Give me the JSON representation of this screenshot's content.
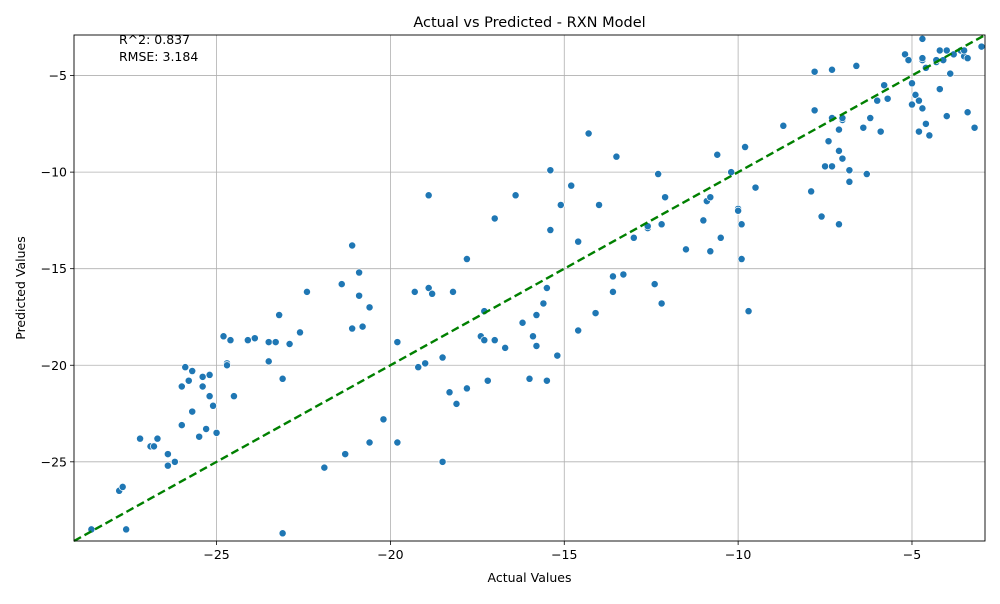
{
  "chart_data": {
    "type": "scatter",
    "title": "Actual vs Predicted - RXN Model",
    "xlabel": "Actual Values",
    "ylabel": "Predicted Values",
    "xlim": [
      -29.1,
      -2.9
    ],
    "ylim": [
      -29.1,
      -2.9
    ],
    "xticks": [
      -25,
      -20,
      -15,
      -10,
      -5
    ],
    "yticks": [
      -25,
      -20,
      -15,
      -10,
      -5
    ],
    "xtick_labels": [
      "−25",
      "−20",
      "−15",
      "−10",
      "−5"
    ],
    "ytick_labels": [
      "−25",
      "−20",
      "−15",
      "−10",
      "−5"
    ],
    "grid": true,
    "annotations": [
      "R^2: 0.837",
      "RMSE: 3.184"
    ],
    "reference_line": {
      "style": "dashed",
      "color": "#008000",
      "from": [
        -29.1,
        -29.1
      ],
      "to": [
        -2.9,
        -2.9
      ]
    },
    "point_color": "#1f77b4",
    "points": [
      [
        -28.6,
        -28.5
      ],
      [
        -27.8,
        -26.5
      ],
      [
        -27.7,
        -26.3
      ],
      [
        -27.6,
        -28.5
      ],
      [
        -27.2,
        -23.8
      ],
      [
        -26.9,
        -24.2
      ],
      [
        -26.8,
        -24.2
      ],
      [
        -26.7,
        -23.8
      ],
      [
        -26.4,
        -24.6
      ],
      [
        -26.4,
        -25.2
      ],
      [
        -26.2,
        -25.0
      ],
      [
        -26.0,
        -23.1
      ],
      [
        -26.0,
        -21.1
      ],
      [
        -25.9,
        -20.1
      ],
      [
        -25.8,
        -20.8
      ],
      [
        -25.7,
        -20.3
      ],
      [
        -25.7,
        -22.4
      ],
      [
        -25.5,
        -23.7
      ],
      [
        -25.4,
        -21.1
      ],
      [
        -25.4,
        -20.6
      ],
      [
        -25.3,
        -23.3
      ],
      [
        -25.2,
        -20.5
      ],
      [
        -25.2,
        -21.6
      ],
      [
        -25.1,
        -22.1
      ],
      [
        -25.0,
        -23.5
      ],
      [
        -24.8,
        -18.5
      ],
      [
        -24.7,
        -19.9
      ],
      [
        -24.7,
        -20.0
      ],
      [
        -24.6,
        -18.7
      ],
      [
        -24.5,
        -21.6
      ],
      [
        -24.1,
        -18.7
      ],
      [
        -23.9,
        -18.6
      ],
      [
        -23.5,
        -18.8
      ],
      [
        -23.5,
        -19.8
      ],
      [
        -23.3,
        -18.8
      ],
      [
        -23.2,
        -17.4
      ],
      [
        -23.1,
        -20.7
      ],
      [
        -23.1,
        -28.7
      ],
      [
        -22.9,
        -18.9
      ],
      [
        -22.6,
        -18.3
      ],
      [
        -22.4,
        -16.2
      ],
      [
        -21.9,
        -25.3
      ],
      [
        -21.4,
        -15.8
      ],
      [
        -21.3,
        -24.6
      ],
      [
        -21.1,
        -18.1
      ],
      [
        -21.1,
        -13.8
      ],
      [
        -20.9,
        -16.4
      ],
      [
        -20.9,
        -15.2
      ],
      [
        -20.8,
        -18.0
      ],
      [
        -20.6,
        -24.0
      ],
      [
        -20.6,
        -17.0
      ],
      [
        -20.2,
        -22.8
      ],
      [
        -19.8,
        -24.0
      ],
      [
        -19.8,
        -18.8
      ],
      [
        -19.3,
        -16.2
      ],
      [
        -19.2,
        -20.1
      ],
      [
        -19.0,
        -19.9
      ],
      [
        -18.9,
        -16.0
      ],
      [
        -18.9,
        -11.2
      ],
      [
        -18.8,
        -16.3
      ],
      [
        -18.5,
        -19.6
      ],
      [
        -18.5,
        -25.0
      ],
      [
        -18.3,
        -21.4
      ],
      [
        -18.2,
        -16.2
      ],
      [
        -18.1,
        -22.0
      ],
      [
        -17.8,
        -14.5
      ],
      [
        -17.8,
        -21.2
      ],
      [
        -17.4,
        -18.5
      ],
      [
        -17.3,
        -17.2
      ],
      [
        -17.3,
        -18.7
      ],
      [
        -17.2,
        -20.8
      ],
      [
        -17.0,
        -12.4
      ],
      [
        -17.0,
        -18.7
      ],
      [
        -16.7,
        -19.1
      ],
      [
        -16.4,
        -11.2
      ],
      [
        -16.2,
        -17.8
      ],
      [
        -16.0,
        -20.7
      ],
      [
        -15.9,
        -18.5
      ],
      [
        -15.8,
        -19.0
      ],
      [
        -15.8,
        -17.4
      ],
      [
        -15.6,
        -16.8
      ],
      [
        -15.5,
        -16.0
      ],
      [
        -15.5,
        -20.8
      ],
      [
        -15.4,
        -13.0
      ],
      [
        -15.4,
        -9.9
      ],
      [
        -15.2,
        -19.5
      ],
      [
        -15.1,
        -11.7
      ],
      [
        -14.8,
        -10.7
      ],
      [
        -14.6,
        -18.2
      ],
      [
        -14.6,
        -13.6
      ],
      [
        -14.3,
        -8.0
      ],
      [
        -14.1,
        -17.3
      ],
      [
        -14.0,
        -11.7
      ],
      [
        -13.6,
        -15.4
      ],
      [
        -13.6,
        -16.2
      ],
      [
        -13.5,
        -9.2
      ],
      [
        -13.3,
        -15.3
      ],
      [
        -13.0,
        -13.4
      ],
      [
        -12.6,
        -12.9
      ],
      [
        -12.6,
        -12.8
      ],
      [
        -12.4,
        -15.8
      ],
      [
        -12.3,
        -10.1
      ],
      [
        -12.2,
        -12.7
      ],
      [
        -12.2,
        -16.8
      ],
      [
        -12.1,
        -11.3
      ],
      [
        -11.5,
        -14.0
      ],
      [
        -11.0,
        -12.5
      ],
      [
        -10.9,
        -11.5
      ],
      [
        -10.8,
        -14.1
      ],
      [
        -10.8,
        -11.3
      ],
      [
        -10.6,
        -9.1
      ],
      [
        -10.5,
        -13.4
      ],
      [
        -10.2,
        -10.0
      ],
      [
        -10.0,
        -11.9
      ],
      [
        -10.0,
        -12.0
      ],
      [
        -9.9,
        -14.5
      ],
      [
        -9.9,
        -12.7
      ],
      [
        -9.8,
        -8.7
      ],
      [
        -9.7,
        -17.2
      ],
      [
        -9.5,
        -10.8
      ],
      [
        -8.7,
        -7.6
      ],
      [
        -7.9,
        -11.0
      ],
      [
        -7.8,
        -4.8
      ],
      [
        -7.8,
        -6.8
      ],
      [
        -7.6,
        -12.3
      ],
      [
        -7.5,
        -9.7
      ],
      [
        -7.4,
        -8.4
      ],
      [
        -7.3,
        -4.7
      ],
      [
        -7.3,
        -7.2
      ],
      [
        -7.3,
        -9.7
      ],
      [
        -7.1,
        -12.7
      ],
      [
        -7.1,
        -8.9
      ],
      [
        -7.1,
        -7.8
      ],
      [
        -7.0,
        -7.3
      ],
      [
        -7.0,
        -7.2
      ],
      [
        -7.0,
        -9.3
      ],
      [
        -6.8,
        -10.5
      ],
      [
        -6.8,
        -9.9
      ],
      [
        -6.6,
        -4.5
      ],
      [
        -6.4,
        -7.7
      ],
      [
        -6.3,
        -10.1
      ],
      [
        -6.2,
        -7.2
      ],
      [
        -6.0,
        -6.3
      ],
      [
        -5.9,
        -7.9
      ],
      [
        -5.8,
        -5.5
      ],
      [
        -5.7,
        -6.2
      ],
      [
        -5.2,
        -3.9
      ],
      [
        -5.1,
        -4.2
      ],
      [
        -5.0,
        -5.4
      ],
      [
        -5.0,
        -6.5
      ],
      [
        -4.9,
        -6.0
      ],
      [
        -4.8,
        -6.3
      ],
      [
        -4.8,
        -7.9
      ],
      [
        -4.7,
        -6.7
      ],
      [
        -4.7,
        -4.2
      ],
      [
        -4.7,
        -4.1
      ],
      [
        -4.7,
        -3.1
      ],
      [
        -4.6,
        -7.5
      ],
      [
        -4.6,
        -4.6
      ],
      [
        -4.5,
        -8.1
      ],
      [
        -4.3,
        -4.3
      ],
      [
        -4.3,
        -4.2
      ],
      [
        -4.2,
        -3.7
      ],
      [
        -4.2,
        -5.7
      ],
      [
        -4.1,
        -4.2
      ],
      [
        -4.0,
        -7.1
      ],
      [
        -4.0,
        -3.7
      ],
      [
        -3.9,
        -4.9
      ],
      [
        -3.8,
        -3.9
      ],
      [
        -3.6,
        -3.7
      ],
      [
        -3.5,
        -4.0
      ],
      [
        -3.5,
        -3.7
      ],
      [
        -3.4,
        -6.9
      ],
      [
        -3.4,
        -4.1
      ],
      [
        -3.2,
        -7.7
      ],
      [
        -3.0,
        -3.5
      ]
    ]
  }
}
